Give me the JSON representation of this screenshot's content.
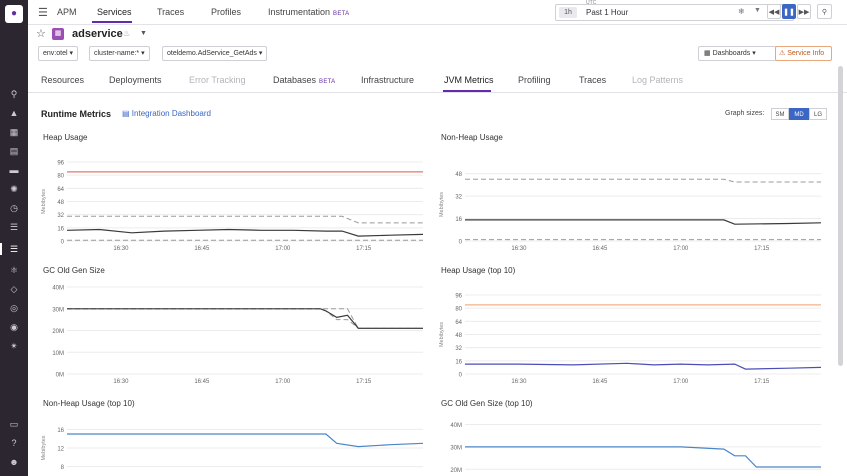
{
  "sidebar": {
    "logo": "datadog-logo"
  },
  "topnav": {
    "app": "APM",
    "items": [
      {
        "label": "Services"
      },
      {
        "label": "Traces"
      },
      {
        "label": "Profiles"
      },
      {
        "label": "Instrumentation",
        "badge": "BETA"
      }
    ],
    "timezone": "UTC",
    "time_short": "1h",
    "time_label": "Past 1 Hour"
  },
  "service": {
    "name": "adservice",
    "filters": [
      "env:otel",
      "cluster-name:*",
      "oteldemo.AdService_GetAds"
    ],
    "dashboards_label": "Dashboards",
    "service_info_label": "Service Info"
  },
  "tabs": [
    {
      "label": "Resources",
      "state": "normal"
    },
    {
      "label": "Deployments",
      "state": "normal"
    },
    {
      "label": "Error Tracking",
      "state": "disabled"
    },
    {
      "label": "Databases",
      "state": "normal",
      "badge": "BETA"
    },
    {
      "label": "Infrastructure",
      "state": "normal"
    },
    {
      "label": "JVM Metrics",
      "state": "active"
    },
    {
      "label": "Profiling",
      "state": "normal"
    },
    {
      "label": "Traces",
      "state": "normal"
    },
    {
      "label": "Log Patterns",
      "state": "disabled"
    }
  ],
  "runtime": {
    "title": "Runtime Metrics",
    "integration_link": "Integration Dashboard",
    "graph_sizes_label": "Graph sizes:",
    "sizes": [
      "SM",
      "MD",
      "LG"
    ],
    "selected_size": "MD"
  },
  "chart_data": [
    {
      "id": "heap-usage",
      "type": "line",
      "title": "Heap Usage",
      "ylabel": "Mebibytes",
      "yticks": [
        "96",
        "80",
        "64",
        "48",
        "32",
        "16",
        "0"
      ],
      "ylim": [
        0,
        96
      ],
      "xticks": [
        "16:30",
        "16:45",
        "17:00",
        "17:15"
      ],
      "x": [
        "16:20",
        "16:26",
        "16:32",
        "16:38",
        "16:44",
        "16:50",
        "16:56",
        "17:02",
        "17:08",
        "17:11",
        "17:14",
        "17:20",
        "17:26"
      ],
      "series": [
        {
          "color": "#e07a6b",
          "dash": false,
          "values": [
            84,
            84,
            84,
            84,
            84,
            84,
            84,
            84,
            84,
            84,
            84,
            84,
            84
          ]
        },
        {
          "color": "#9b9b9b",
          "dash": true,
          "values": [
            30,
            30,
            30,
            30,
            30,
            30,
            30,
            30,
            30,
            30,
            22,
            22,
            22
          ]
        },
        {
          "color": "#3a3a3a",
          "dash": false,
          "values": [
            13,
            14,
            10,
            12,
            13,
            14,
            13,
            13,
            12,
            12,
            6,
            7,
            8
          ]
        },
        {
          "color": "#9b9b9b",
          "dash": true,
          "values": [
            1,
            1,
            1,
            1,
            1,
            1,
            1,
            1,
            1,
            1,
            1,
            1,
            1
          ]
        }
      ]
    },
    {
      "id": "non-heap-usage",
      "type": "line",
      "title": "Non-Heap Usage",
      "ylabel": "Mebibytes",
      "yticks": [
        "48",
        "32",
        "16",
        "0"
      ],
      "ylim": [
        0,
        52
      ],
      "xticks": [
        "16:30",
        "16:45",
        "17:00",
        "17:15"
      ],
      "x": [
        "16:20",
        "16:30",
        "16:40",
        "16:50",
        "17:00",
        "17:08",
        "17:10",
        "17:20",
        "17:26"
      ],
      "series": [
        {
          "color": "#9b9b9b",
          "dash": true,
          "values": [
            44,
            44,
            44,
            44,
            44,
            44,
            42,
            42,
            42
          ]
        },
        {
          "color": "#3a3a3a",
          "dash": false,
          "values": [
            15,
            15,
            15,
            15,
            15,
            15,
            12,
            12.5,
            13
          ]
        },
        {
          "color": "#9b9b9b",
          "dash": true,
          "values": [
            1,
            1,
            1,
            1,
            1,
            1,
            1,
            1,
            1
          ]
        }
      ]
    },
    {
      "id": "gc-old-gen",
      "type": "line",
      "title": "GC Old Gen Size",
      "ylabel": "",
      "yticks": [
        "40M",
        "30M",
        "20M",
        "10M",
        "0M"
      ],
      "ylim": [
        0,
        40
      ],
      "xticks": [
        "16:30",
        "16:45",
        "17:00",
        "17:15"
      ],
      "x": [
        "16:20",
        "16:30",
        "16:45",
        "17:00",
        "17:07",
        "17:08",
        "17:10",
        "17:12",
        "17:14",
        "17:20",
        "17:26"
      ],
      "series": [
        {
          "color": "#9b9b9b",
          "dash": true,
          "values": [
            30,
            30,
            30,
            30,
            30,
            29,
            25,
            25,
            21,
            21,
            21
          ]
        },
        {
          "color": "#9b9b9b",
          "dash": true,
          "values": [
            30,
            30,
            30,
            30,
            30,
            30,
            30,
            30,
            21,
            21,
            21
          ]
        },
        {
          "color": "#3a3a3a",
          "dash": false,
          "values": [
            30,
            30,
            30,
            30,
            30,
            29,
            26,
            27,
            21,
            21,
            21
          ]
        }
      ]
    },
    {
      "id": "heap-usage-top10",
      "type": "line",
      "title": "Heap Usage (top 10)",
      "ylabel": "Mebibytes",
      "yticks": [
        "96",
        "80",
        "64",
        "48",
        "32",
        "16",
        "0"
      ],
      "ylim": [
        0,
        96
      ],
      "xticks": [
        "16:30",
        "16:45",
        "17:00",
        "17:15"
      ],
      "x": [
        "16:20",
        "16:30",
        "16:40",
        "16:50",
        "16:55",
        "17:00",
        "17:05",
        "17:10",
        "17:12",
        "17:20",
        "17:26"
      ],
      "series": [
        {
          "color": "#f2b187",
          "dash": false,
          "values": [
            84,
            84,
            84,
            84,
            84,
            84,
            84,
            84,
            84,
            84,
            84
          ]
        },
        {
          "color": "#4b4fb5",
          "dash": false,
          "values": [
            12,
            12,
            11,
            13,
            11,
            12,
            11,
            12,
            6,
            7,
            8
          ]
        }
      ]
    },
    {
      "id": "non-heap-top10",
      "type": "line",
      "title": "Non-Heap Usage (top 10)",
      "ylabel": "Mebibytes",
      "yticks": [
        "16",
        "12",
        "8"
      ],
      "ylim": [
        6,
        18
      ],
      "xticks": [],
      "x": [
        "16:20",
        "16:40",
        "17:00",
        "17:08",
        "17:10",
        "17:14",
        "17:20",
        "17:26"
      ],
      "series": [
        {
          "color": "#4a86c8",
          "dash": false,
          "values": [
            15,
            15,
            15,
            15,
            13,
            12.3,
            12.7,
            13
          ]
        }
      ]
    },
    {
      "id": "gc-old-gen-top10",
      "type": "line",
      "title": "GC Old Gen Size (top 10)",
      "ylabel": "",
      "yticks": [
        "40M",
        "30M",
        "20M"
      ],
      "ylim": [
        17,
        42
      ],
      "xticks": [],
      "x": [
        "16:20",
        "16:40",
        "17:00",
        "17:08",
        "17:10",
        "17:12",
        "17:14",
        "17:20",
        "17:26"
      ],
      "series": [
        {
          "color": "#4a86c8",
          "dash": false,
          "values": [
            30,
            30,
            30,
            29,
            26,
            26,
            21,
            21,
            21
          ]
        }
      ]
    }
  ]
}
